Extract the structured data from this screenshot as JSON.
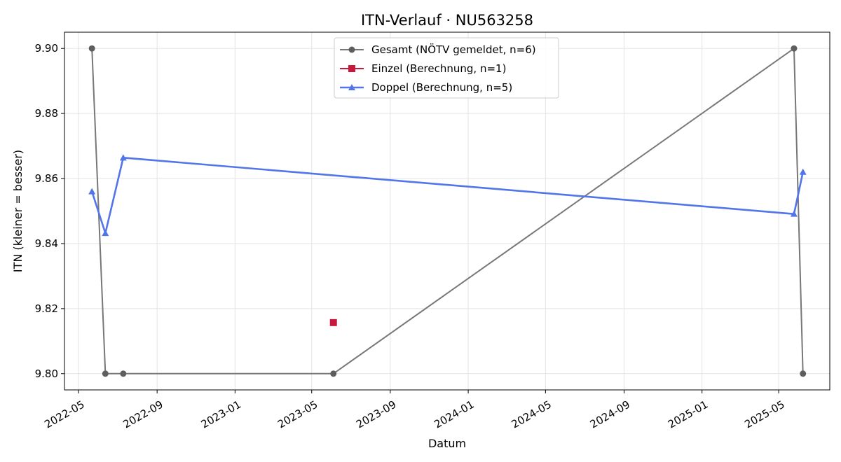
{
  "chart_data": {
    "type": "line",
    "title": "ITN-Verlauf · NU563258",
    "xlabel": "Datum",
    "ylabel": "ITN  (kleiner = besser)",
    "x_axis_type": "date",
    "xlim": [
      "2022-04-09",
      "2025-07-20"
    ],
    "ylim": [
      9.795,
      9.905
    ],
    "x_ticks": [
      "2022-05-01",
      "2022-09-01",
      "2023-01-01",
      "2023-05-01",
      "2023-09-01",
      "2024-01-01",
      "2024-05-01",
      "2024-09-01",
      "2025-01-01",
      "2025-05-01"
    ],
    "x_tick_labels": [
      "2022-05",
      "2022-09",
      "2023-01",
      "2023-05",
      "2023-09",
      "2024-01",
      "2024-05",
      "2024-09",
      "2025-01",
      "2025-05"
    ],
    "y_ticks": [
      9.8,
      9.82,
      9.84,
      9.86,
      9.88,
      9.9
    ],
    "y_tick_labels": [
      "9.80",
      "9.82",
      "9.84",
      "9.86",
      "9.88",
      "9.90"
    ],
    "grid": true,
    "legend_position": "top-center",
    "series": [
      {
        "name": "Gesamt (NÖTV gemeldet, n=6)",
        "color": "#777777",
        "marker": "circle",
        "points": [
          {
            "x": "2022-05-22",
            "y": 9.9
          },
          {
            "x": "2022-06-12",
            "y": 9.8
          },
          {
            "x": "2022-07-10",
            "y": 9.8
          },
          {
            "x": "2023-06-04",
            "y": 9.8
          },
          {
            "x": "2025-05-25",
            "y": 9.9
          },
          {
            "x": "2025-06-08",
            "y": 9.8
          }
        ]
      },
      {
        "name": "Einzel (Berechnung, n=1)",
        "color": "#c8193c",
        "marker": "square",
        "points": [
          {
            "x": "2023-06-04",
            "y": 9.8157
          }
        ]
      },
      {
        "name": "Doppel (Berechnung, n=5)",
        "color": "#5275e8",
        "marker": "triangle",
        "points": [
          {
            "x": "2022-05-22",
            "y": 9.856
          },
          {
            "x": "2022-06-12",
            "y": 9.8432
          },
          {
            "x": "2022-07-10",
            "y": 9.8664
          },
          {
            "x": "2025-05-25",
            "y": 9.8491
          },
          {
            "x": "2025-06-08",
            "y": 9.862
          }
        ]
      }
    ]
  }
}
